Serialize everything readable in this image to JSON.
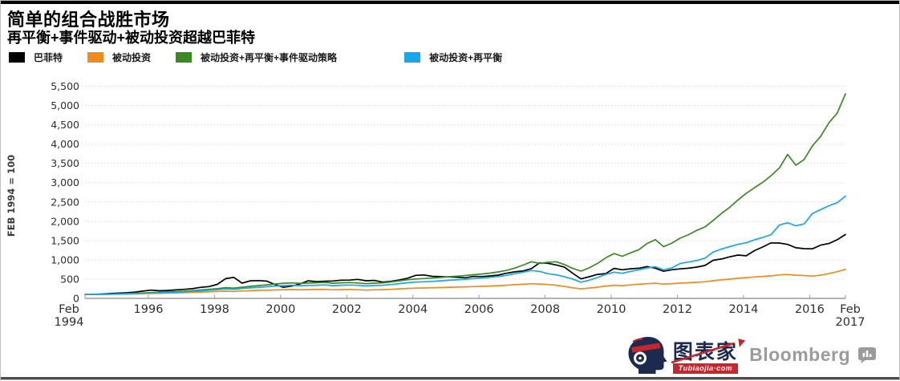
{
  "header": {
    "title": "简单的组合战胜市场",
    "subtitle": "再平衡+事件驱动+被动投资超越巴菲特"
  },
  "footer": {
    "brand_name_cn": "图表家",
    "brand_site": "Tubiaojia·com",
    "partner": "Bloomberg"
  },
  "colors": {
    "buffett": "#000000",
    "passive": "#F08B1D",
    "passive_rebalance_event": "#3A8A22",
    "passive_rebalance": "#16A8EC",
    "gridline": "#d8d8d8",
    "axis": "#9a9a9a",
    "brand_navy": "#1b2a4e",
    "brand_red": "#c8252c",
    "bloomberg_gray": "#9b9b9b"
  },
  "chart_data": {
    "type": "line",
    "title": "简单的组合战胜市场",
    "subtitle": "再平衡+事件驱动+被动投资超越巴菲特",
    "ylabel": "FEB 1994 = 100",
    "xlabel": "",
    "ylim": [
      0,
      5500
    ],
    "ytick_step": 500,
    "grid": "horizontal-dotted",
    "legend_position": "top",
    "x_range": [
      1994.0833,
      2017.0833
    ],
    "x_step_years": 0.25,
    "xticks": [
      {
        "t": 1994.0833,
        "lines": [
          "Feb",
          "1994"
        ]
      },
      {
        "t": 1996,
        "lines": [
          "1996"
        ]
      },
      {
        "t": 1998,
        "lines": [
          "1998"
        ]
      },
      {
        "t": 2000,
        "lines": [
          "2000"
        ]
      },
      {
        "t": 2002,
        "lines": [
          "2002"
        ]
      },
      {
        "t": 2004,
        "lines": [
          "2004"
        ]
      },
      {
        "t": 2006,
        "lines": [
          "2006"
        ]
      },
      {
        "t": 2008,
        "lines": [
          "2008"
        ]
      },
      {
        "t": 2010,
        "lines": [
          "2010"
        ]
      },
      {
        "t": 2012,
        "lines": [
          "2012"
        ]
      },
      {
        "t": 2014,
        "lines": [
          "2014"
        ]
      },
      {
        "t": 2016,
        "lines": [
          "2016"
        ]
      },
      {
        "t": 2017.0833,
        "lines": [
          "Feb",
          "2017"
        ]
      }
    ],
    "series": [
      {
        "name": "巴菲特",
        "color": "#000000",
        "values": [
          100,
          105,
          112,
          125,
          136,
          145,
          162,
          190,
          214,
          198,
          206,
          222,
          234,
          252,
          286,
          306,
          364,
          512,
          545,
          396,
          455,
          461,
          448,
          357,
          286,
          318,
          377,
          455,
          435,
          446,
          452,
          472,
          474,
          492,
          458,
          466,
          422,
          442,
          476,
          522,
          597,
          608,
          572,
          566,
          558,
          546,
          532,
          570,
          565,
          582,
          602,
          652,
          688,
          712,
          772,
          922,
          909,
          868,
          808,
          650,
          506,
          562,
          622,
          642,
          778,
          742,
          768,
          782,
          825,
          782,
          702,
          742,
          766,
          782,
          812,
          852,
          987,
          1022,
          1078,
          1122,
          1104,
          1240,
          1332,
          1438,
          1435,
          1400,
          1312,
          1290,
          1286,
          1380,
          1422,
          1520,
          1656
        ]
      },
      {
        "name": "被动投资",
        "color": "#F08B1D",
        "values": [
          100,
          101,
          103,
          106,
          110,
          114,
          118,
          123,
          129,
          133,
          137,
          142,
          148,
          155,
          162,
          170,
          178,
          187,
          181,
          191,
          200,
          207,
          213,
          219,
          225,
          229,
          224,
          227,
          230,
          233,
          222,
          227,
          232,
          225,
          215,
          222,
          226,
          236,
          247,
          258,
          266,
          270,
          275,
          281,
          288,
          293,
          299,
          306,
          312,
          320,
          330,
          341,
          355,
          368,
          380,
          372,
          360,
          340,
          310,
          275,
          248,
          268,
          292,
          320,
          340,
          330,
          350,
          365,
          380,
          392,
          370,
          382,
          395,
          405,
          418,
          430,
          458,
          480,
          500,
          520,
          540,
          555,
          570,
          585,
          610,
          620,
          600,
          592,
          578,
          602,
          642,
          692,
          752
        ]
      },
      {
        "name": "被动投资+再平衡+事件驱动策略",
        "color": "#3A8A22",
        "values": [
          100,
          103,
          107,
          112,
          118,
          125,
          133,
          142,
          152,
          160,
          168,
          178,
          188,
          202,
          218,
          235,
          252,
          278,
          266,
          290,
          312,
          332,
          352,
          372,
          392,
          402,
          390,
          397,
          405,
          415,
          392,
          403,
          412,
          400,
          382,
          396,
          402,
          426,
          456,
          483,
          503,
          513,
          526,
          543,
          562,
          576,
          592,
          613,
          633,
          656,
          686,
          726,
          786,
          862,
          950,
          906,
          936,
          950,
          878,
          778,
          706,
          792,
          906,
          1052,
          1162,
          1092,
          1182,
          1262,
          1422,
          1522,
          1342,
          1432,
          1562,
          1652,
          1762,
          1852,
          2022,
          2202,
          2362,
          2552,
          2722,
          2872,
          3012,
          3182,
          3382,
          3732,
          3452,
          3602,
          3952,
          4202,
          4552,
          4802,
          5302
        ]
      },
      {
        "name": "被动投资+再平衡",
        "color": "#16A8EC",
        "values": [
          100,
          102,
          104,
          108,
          113,
          119,
          125,
          132,
          140,
          146,
          152,
          160,
          170,
          182,
          195,
          210,
          225,
          246,
          236,
          256,
          272,
          288,
          302,
          318,
          332,
          340,
          330,
          336,
          342,
          350,
          330,
          341,
          348,
          338,
          322,
          334,
          340,
          358,
          382,
          405,
          422,
          430,
          441,
          455,
          470,
          481,
          495,
          511,
          526,
          546,
          568,
          596,
          641,
          681,
          721,
          701,
          641,
          611,
          561,
          501,
          421,
          471,
          541,
          621,
          681,
          651,
          701,
          741,
          791,
          821,
          741,
          791,
          905,
          941,
          981,
          1041,
          1201,
          1281,
          1341,
          1401,
          1441,
          1521,
          1581,
          1651,
          1901,
          1961,
          1881,
          1931,
          2201,
          2301,
          2401,
          2481,
          2651
        ]
      }
    ]
  }
}
